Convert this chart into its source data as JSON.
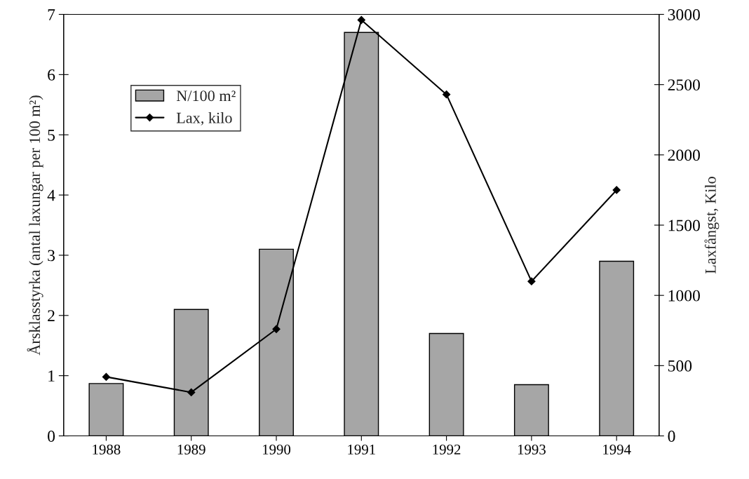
{
  "chart_data": {
    "type": "bar",
    "categories": [
      "1988",
      "1989",
      "1990",
      "1991",
      "1992",
      "1993",
      "1994"
    ],
    "series": [
      {
        "name": "N/100 m²",
        "color": "#a6a6a6",
        "values": [
          0.87,
          2.1,
          3.1,
          6.7,
          1.7,
          0.85,
          2.9
        ]
      },
      {
        "name": "Lax, kilo",
        "type": "line",
        "axis": "y2",
        "color": "#000000",
        "marker": "diamond",
        "values": [
          420,
          310,
          760,
          2960,
          2430,
          1100,
          1750
        ]
      }
    ],
    "ylabel": "Årsklasstyrka (antal laxungar per 100 m²)",
    "y2label": "Laxfångst, Kilo",
    "ylim": [
      0,
      7
    ],
    "yticks": [
      0,
      1,
      2,
      3,
      4,
      5,
      6,
      7
    ],
    "y2lim": [
      0,
      3000
    ],
    "y2ticks": [
      0,
      500,
      1000,
      1500,
      2000,
      2500,
      3000
    ],
    "grid": false,
    "legend": "top left"
  }
}
